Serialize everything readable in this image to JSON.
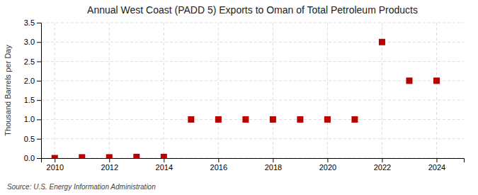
{
  "chart_data": {
    "type": "scatter",
    "title": "Annual West Coast (PADD 5) Exports to Oman of Total Petroleum Products",
    "y_label": "Thousand Barrels per Day",
    "source": "Source: U.S. Energy Information Administration",
    "x": [
      2010,
      2011,
      2012,
      2013,
      2014,
      2015,
      2016,
      2017,
      2018,
      2019,
      2020,
      2021,
      2022,
      2023,
      2024
    ],
    "values": [
      0.0,
      0.02,
      0.02,
      0.03,
      0.03,
      1.0,
      1.0,
      1.0,
      1.0,
      1.0,
      1.0,
      1.0,
      3.0,
      2.0,
      2.0
    ],
    "color": "#bb0000",
    "marker": "square",
    "xlim": [
      2009.5,
      2025.0
    ],
    "xticks": [
      2010,
      2012,
      2014,
      2016,
      2018,
      2020,
      2022,
      2024
    ],
    "ylim": [
      0,
      3.5
    ],
    "yticks": [
      {
        "value": 0,
        "label": "0.0"
      },
      0.5,
      {
        "value": 1,
        "label": "1.0"
      },
      1.5,
      {
        "value": 2,
        "label": "2.0"
      },
      2.5,
      {
        "value": 3,
        "label": "3.0"
      },
      3.5
    ],
    "grid": true
  }
}
